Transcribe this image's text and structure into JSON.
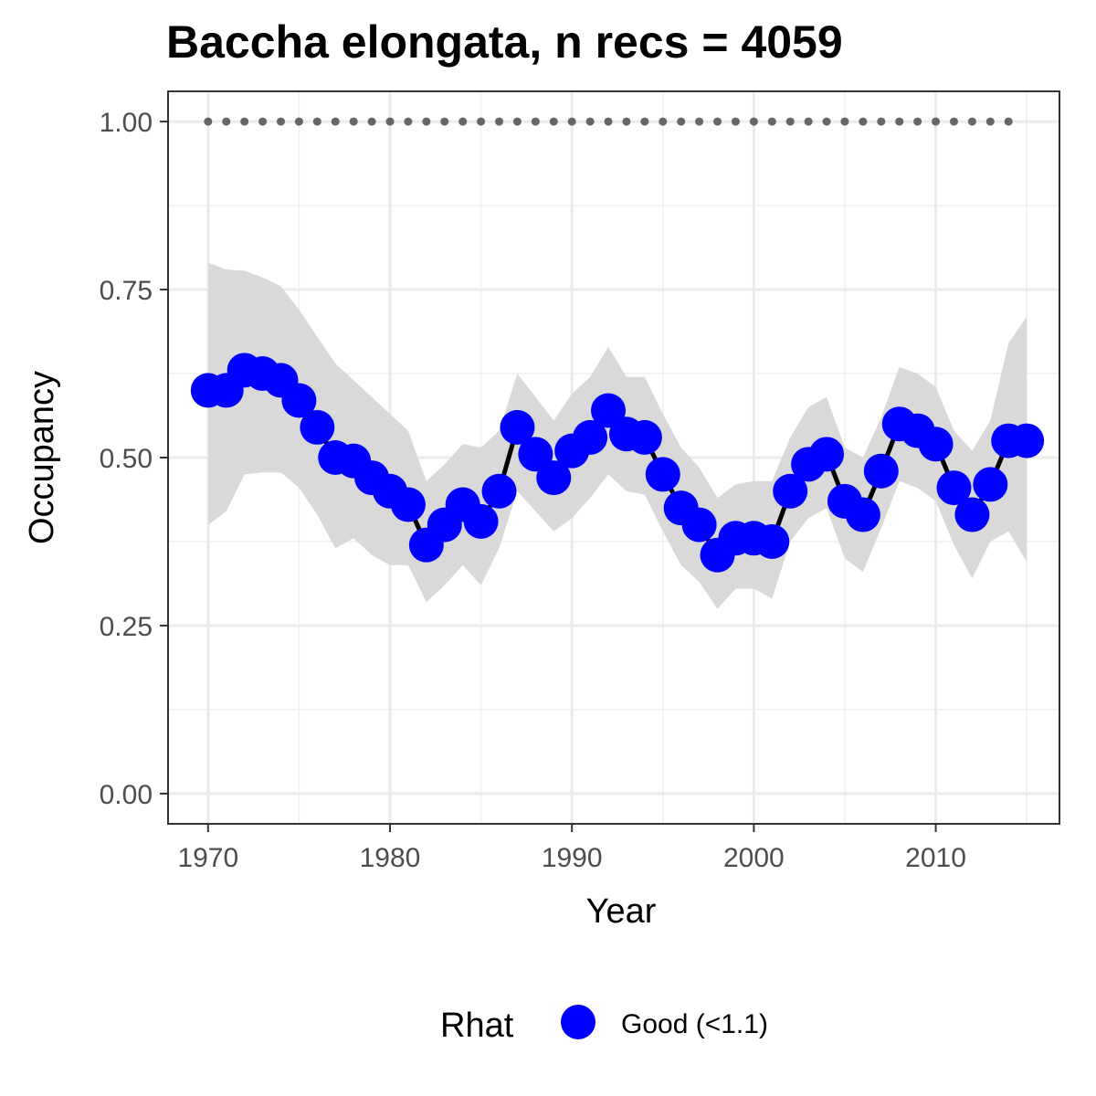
{
  "chart_data": {
    "type": "line",
    "title": "Baccha elongata, n recs = 4059",
    "xlabel": "Year",
    "ylabel": "Occupancy",
    "xlim": [
      1967.8,
      2016.8
    ],
    "ylim": [
      -0.045,
      1.045
    ],
    "x_ticks": [
      1970,
      1980,
      1990,
      2000,
      2010
    ],
    "x_tick_labels": [
      "1970",
      "1980",
      "1990",
      "2000",
      "2010"
    ],
    "y_ticks": [
      0,
      0.25,
      0.5,
      0.75,
      1.0
    ],
    "y_tick_labels": [
      "0.00",
      "0.25",
      "0.50",
      "0.75",
      "1.00"
    ],
    "grid": true,
    "legend": {
      "title": "Rhat",
      "placement": "bottom",
      "entries": [
        {
          "label": "Good (<1.1)",
          "color": "#0000ff"
        }
      ]
    },
    "colors": {
      "points": "#0000ff",
      "line": "#000000",
      "ribbon": "#d9d9d9",
      "reference": "#666666"
    },
    "x": [
      1970,
      1971,
      1972,
      1973,
      1974,
      1975,
      1976,
      1977,
      1978,
      1979,
      1980,
      1981,
      1982,
      1983,
      1984,
      1985,
      1986,
      1987,
      1988,
      1989,
      1990,
      1991,
      1992,
      1993,
      1994,
      1995,
      1996,
      1997,
      1998,
      1999,
      2000,
      2001,
      2002,
      2003,
      2004,
      2005,
      2006,
      2007,
      2008,
      2009,
      2010,
      2011,
      2012,
      2013,
      2014,
      2015
    ],
    "series": [
      {
        "values": [
          0.6,
          0.6,
          0.63,
          0.625,
          0.615,
          0.585,
          0.545,
          0.5,
          0.495,
          0.47,
          0.45,
          0.43,
          0.37,
          0.4,
          0.43,
          0.405,
          0.45,
          0.545,
          0.505,
          0.47,
          0.51,
          0.53,
          0.57,
          0.535,
          0.53,
          0.475,
          0.425,
          0.4,
          0.355,
          0.38,
          0.38,
          0.375,
          0.45,
          0.49,
          0.505,
          0.435,
          0.415,
          0.48,
          0.55,
          0.54,
          0.52,
          0.455,
          0.415,
          0.46,
          0.525,
          0.525
        ],
        "lower": [
          0.4,
          0.42,
          0.475,
          0.478,
          0.478,
          0.455,
          0.415,
          0.365,
          0.38,
          0.355,
          0.34,
          0.34,
          0.285,
          0.31,
          0.34,
          0.31,
          0.365,
          0.45,
          0.42,
          0.39,
          0.41,
          0.44,
          0.475,
          0.45,
          0.445,
          0.39,
          0.34,
          0.315,
          0.275,
          0.305,
          0.305,
          0.29,
          0.375,
          0.41,
          0.425,
          0.35,
          0.33,
          0.395,
          0.465,
          0.455,
          0.435,
          0.37,
          0.32,
          0.375,
          0.39,
          0.345
        ],
        "upper": [
          0.79,
          0.78,
          0.778,
          0.768,
          0.755,
          0.72,
          0.68,
          0.64,
          0.615,
          0.59,
          0.565,
          0.54,
          0.465,
          0.49,
          0.52,
          0.515,
          0.54,
          0.625,
          0.59,
          0.555,
          0.595,
          0.62,
          0.665,
          0.62,
          0.62,
          0.565,
          0.515,
          0.485,
          0.44,
          0.46,
          0.465,
          0.465,
          0.53,
          0.575,
          0.59,
          0.515,
          0.5,
          0.56,
          0.635,
          0.625,
          0.605,
          0.54,
          0.51,
          0.555,
          0.67,
          0.71
        ]
      }
    ],
    "reference_line": {
      "y": 1.0,
      "x_from": 1970,
      "x_to": 2014
    }
  }
}
